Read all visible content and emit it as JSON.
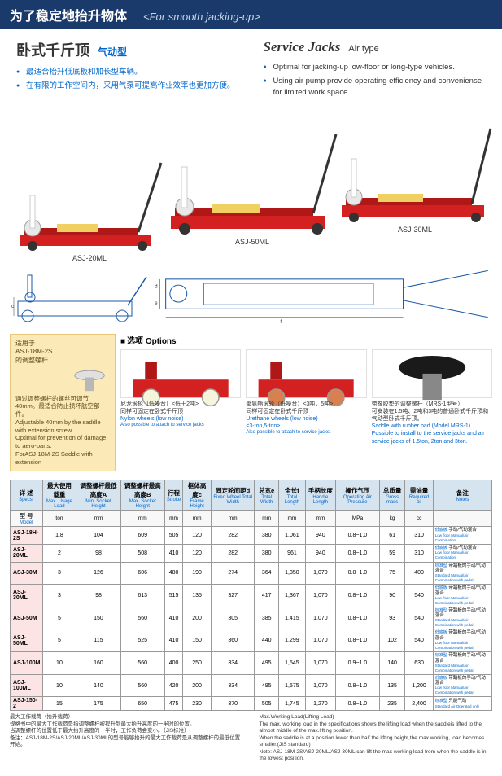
{
  "header": {
    "cn": "为了稳定地抬升物体",
    "en": "<For smooth jacking-up>"
  },
  "intro": {
    "left": {
      "title": "卧式千斤顶",
      "subtitle": "气动型",
      "bullets": [
        "最适合抬升低底板和加长型车辆。",
        "在有限的工作空间内，采用气泵可提高作业效率也更加方便。"
      ]
    },
    "right": {
      "title": "Service Jacks",
      "subtitle": "Air type",
      "bullets": [
        "Optimal for jacking-up low-floor or long-type vehicles.",
        "Using air pump provide operating efficiency and conveniense for limited work space."
      ]
    }
  },
  "jack_labels": {
    "l1": "ASJ-20ML",
    "l2": "ASJ-50ML",
    "l3": "ASJ-30ML"
  },
  "colors": {
    "jack_red": "#d32020",
    "header_bg": "#1a3a6b",
    "accent": "#0066cc"
  },
  "saddle": {
    "t1": "适用于",
    "t2": "ASJ-18M-2S",
    "t3": "的调整螺杆",
    "cn": "通过调整螺杆的螺丝可调节40mm。最适合防止损坏航空部件。",
    "en1": "Adjustable 40mm by the saddle with extension screw.",
    "en2": "Optimal for prevention of damage to aero-parts.",
    "en3": "ForASJ-18M-2S Saddle with extension"
  },
  "options": {
    "title": "选项 Options",
    "cards": [
      {
        "cn1": "尼龙滚轮（低噪音）<低于2吨>",
        "cn2": "同样可固定在卧式千斤顶",
        "en1": "Nylon wheels (low noise)",
        "en2": "<under 2 tons>",
        "en3": "Also possible to attach to service jacks"
      },
      {
        "cn1": "聚氨酯滚轮（低噪音）<3吨，5吨>",
        "cn2": "同样可固定在卧式千斤顶",
        "en1": "Urethane wheels (low noise)",
        "en2": "<3-ton,5-ton>",
        "en3": "Also possible to attach to service jacks."
      },
      {
        "cn1": "带橡胶垫的调整螺杆（MRS-1型号）",
        "cn2": "可安装在1.5吨、2吨和3吨的普通卧式千斤顶和气动型卧式千斤顶。",
        "en1": "Saddle with rubber pad (Model MRS-1)",
        "en2": "Possible to install to the service jacks and air service jacks of 1.5ton, 2ton and 3ton.",
        "en3": ""
      }
    ]
  },
  "table": {
    "headers": [
      {
        "cn": "详 述",
        "en": "Specs."
      },
      {
        "cn": "最大使用载重",
        "en": "Max. Usage Load"
      },
      {
        "cn": "调整螺杆最低高度A",
        "en": "Min. Socket Height"
      },
      {
        "cn": "调整螺杆最高高度B",
        "en": "Max. Socket Height"
      },
      {
        "cn": "行程",
        "en": "Stroke"
      },
      {
        "cn": "框体高度c",
        "en": "Frame Height"
      },
      {
        "cn": "固定轮间距d",
        "en": "Fixed Wheel Total Width"
      },
      {
        "cn": "总宽e",
        "en": "Total Width"
      },
      {
        "cn": "全长f",
        "en": "Total Length"
      },
      {
        "cn": "手柄长度",
        "en": "Handle Length"
      },
      {
        "cn": "操作气压",
        "en": "Operating Air Pressure"
      },
      {
        "cn": "总质量",
        "en": "Gross mass"
      },
      {
        "cn": "需油量",
        "en": "Required oil"
      },
      {
        "cn": "备注",
        "en": "Notes"
      }
    ],
    "model_hdr": {
      "cn": "型 号",
      "en": "Model"
    },
    "units": [
      "ton",
      "mm",
      "mm",
      "mm",
      "mm",
      "mm",
      "mm",
      "mm",
      "mm",
      "MPa",
      "kg",
      "cc",
      ""
    ],
    "rows": [
      [
        "ASJ-18H-2S",
        "1.8",
        "104",
        "609",
        "505",
        "120",
        "282",
        "380",
        "1,061",
        "940",
        "0.8~1.0",
        "61",
        "310",
        {
          "t": "低底板",
          "b": "手动/气动混合",
          "e": "Low floor  Manual/Air Combination"
        }
      ],
      [
        "ASJ-20ML",
        "2",
        "98",
        "508",
        "410",
        "120",
        "282",
        "380",
        "961",
        "940",
        "0.8~1.0",
        "59",
        "310",
        {
          "t": "低底板",
          "b": "手动/气动混合",
          "e": "Low floor  Manual/Air Combination"
        }
      ],
      [
        "ASJ-30M",
        "3",
        "126",
        "606",
        "480",
        "190",
        "274",
        "364",
        "1,350",
        "1,070",
        "0.8~1.0",
        "75",
        "400",
        {
          "t": "标准型",
          "b": "带踏板的手动/气动混合",
          "e": "Standard  Manual/Air Combination with pedal"
        }
      ],
      [
        "ASJ-30ML",
        "3",
        "98",
        "613",
        "515",
        "135",
        "327",
        "417",
        "1,367",
        "1,070",
        "0.8~1.0",
        "90",
        "540",
        {
          "t": "低底板",
          "b": "带踏板的手动/气动混合",
          "e": "Low floor  Manual/Air Combination with pedal"
        }
      ],
      [
        "ASJ-50M",
        "5",
        "150",
        "560",
        "410",
        "200",
        "305",
        "385",
        "1,415",
        "1,070",
        "0.8~1.0",
        "93",
        "540",
        {
          "t": "标准型",
          "b": "带踏板的手动/气动混合",
          "e": "Standard  Manual/Air Combination with pedal"
        }
      ],
      [
        "ASJ-50ML",
        "5",
        "115",
        "525",
        "410",
        "150",
        "360",
        "440",
        "1,299",
        "1,070",
        "0.8~1.0",
        "102",
        "540",
        {
          "t": "低底板",
          "b": "带踏板的手动/气动混合",
          "e": "Low floor  Manual/Air Combination with pedal"
        }
      ],
      [
        "ASJ-100M",
        "10",
        "160",
        "560",
        "400",
        "250",
        "334",
        "495",
        "1,545",
        "1,070",
        "0.9~1.0",
        "140",
        "630",
        {
          "t": "标准型",
          "b": "带踏板的手动/气动混合",
          "e": "Standard  Manual/Air Combination with pedal"
        }
      ],
      [
        "ASJ-100ML",
        "10",
        "140",
        "560",
        "420",
        "200",
        "334",
        "495",
        "1,575",
        "1,070",
        "0.8~1.0",
        "135",
        "1,200",
        {
          "t": "低底板",
          "b": "带踏板的手动/气动混合",
          "e": "Low floor  Manual/Air Combination with pedal"
        }
      ],
      [
        "ASJ-150-2",
        "15",
        "175",
        "650",
        "475",
        "230",
        "370",
        "505",
        "1,745",
        "1,270",
        "0.8~1.0",
        "235",
        "2,400",
        {
          "t": "标准型",
          "b": "只能气动",
          "e": "Standard  Air Operated only"
        }
      ]
    ]
  },
  "footnote": {
    "left": "最大工作载荷（抬升载荷）\n规格书中的最大工作载荷是指调整螺杆被提升到最大抬升高度的一半时的位置。\n当调整螺杆的位置低于最大抬升高度的一半时，工作负荷会变小。（JIS标准）\n备注：ASJ-18M-2S/ASJ-20ML/ASJ-30ML的型号能够抬升的最大工作载荷是从调整螺杆的最低位置开始。",
    "right": "Max.Working Load(Lifting Load)\nThe max. working load in the specifications shows the lifting load when the saddleis lifted to the almost middle of the max.lifting position.\nWhen the saddle is at a position lower than half the lifting height,the max.working, load becomes smaller.(JIS standard)\nNote: ASJ-18M-2S/ASJ-20ML/ASJ-30ML can lift the max working load from when the saddle is in the lowest position."
  }
}
